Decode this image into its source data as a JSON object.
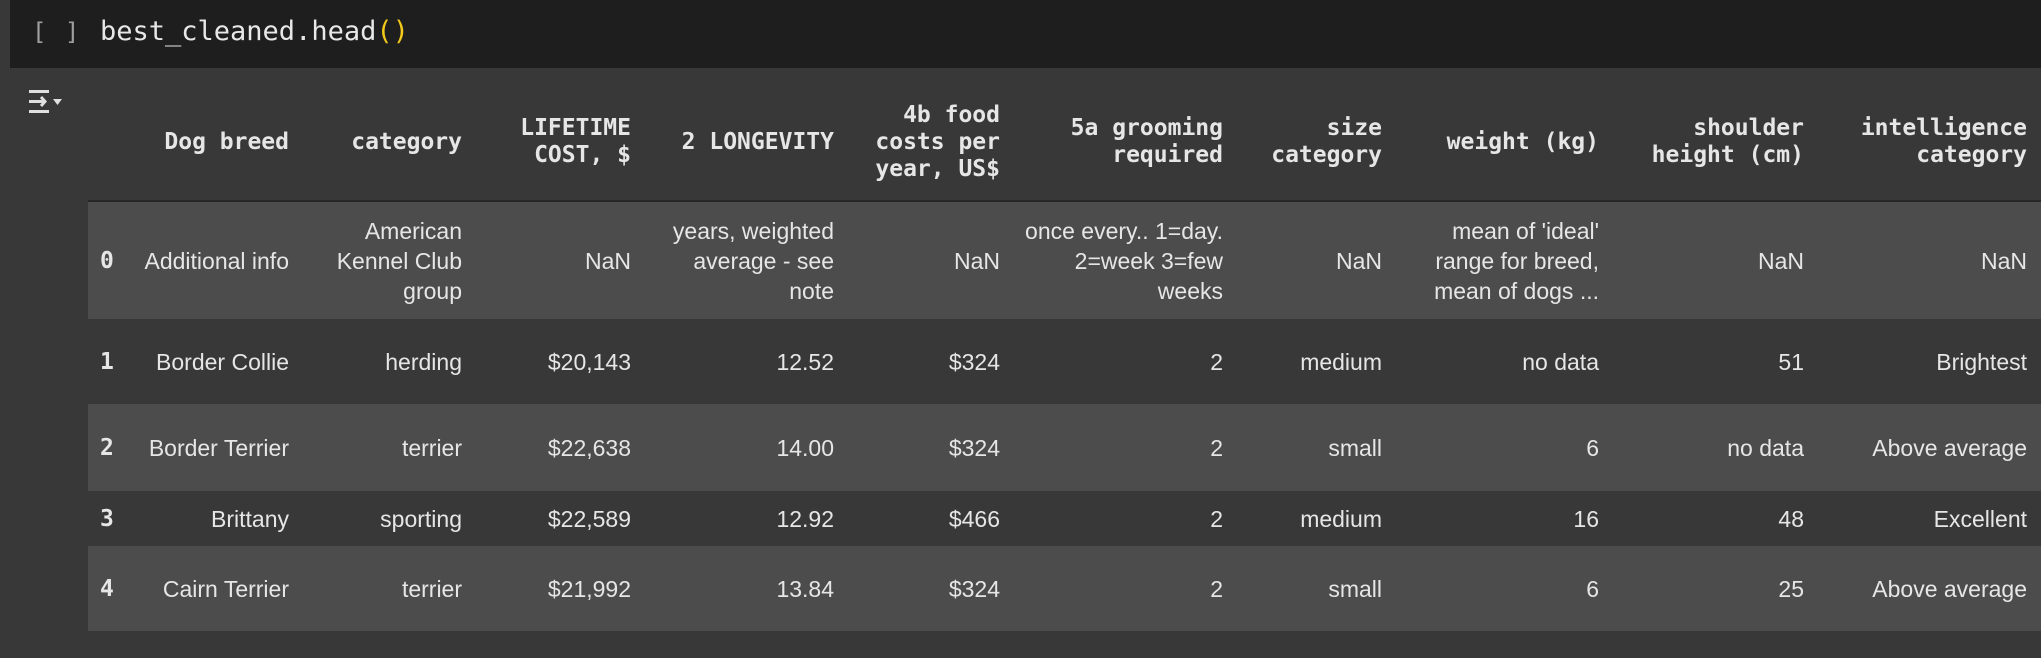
{
  "cell": {
    "bracket": "[ ]",
    "code_prefix": "best_cleaned.head",
    "code_parens": "()"
  },
  "icons": {
    "output_toggle": "output-options-icon"
  },
  "colors": {
    "input_bg": "#1e1e1e",
    "output_bg": "#383838",
    "odd_row_bg": "#4c4c4c",
    "paren_yellow": "#f0c91a"
  },
  "table": {
    "columns": [
      "Dog breed",
      "category",
      "LIFETIME COST, $",
      "2 LONGEVITY",
      "4b food costs per year, US$",
      "5a grooming required",
      "size category",
      "weight (kg)",
      "shoulder height (cm)",
      "intelligence category"
    ],
    "rows": [
      {
        "index": "0",
        "cells": [
          "Additional info",
          "American Kennel Club group",
          "NaN",
          "years, weighted average - see note",
          "NaN",
          "once every.. 1=day. 2=week 3=few weeks",
          "NaN",
          "mean of 'ideal' range for breed, mean of dogs ...",
          "NaN",
          "NaN"
        ]
      },
      {
        "index": "1",
        "cells": [
          "Border Collie",
          "herding",
          "$20,143",
          "12.52",
          "$324",
          "2",
          "medium",
          "no data",
          "51",
          "Brightest"
        ]
      },
      {
        "index": "2",
        "cells": [
          "Border Terrier",
          "terrier",
          "$22,638",
          "14.00",
          "$324",
          "2",
          "small",
          "6",
          "no data",
          "Above average"
        ]
      },
      {
        "index": "3",
        "cells": [
          "Brittany",
          "sporting",
          "$22,589",
          "12.92",
          "$466",
          "2",
          "medium",
          "16",
          "48",
          "Excellent"
        ]
      },
      {
        "index": "4",
        "cells": [
          "Cairn Terrier",
          "terrier",
          "$21,992",
          "13.84",
          "$324",
          "2",
          "small",
          "6",
          "25",
          "Above average"
        ]
      }
    ]
  }
}
